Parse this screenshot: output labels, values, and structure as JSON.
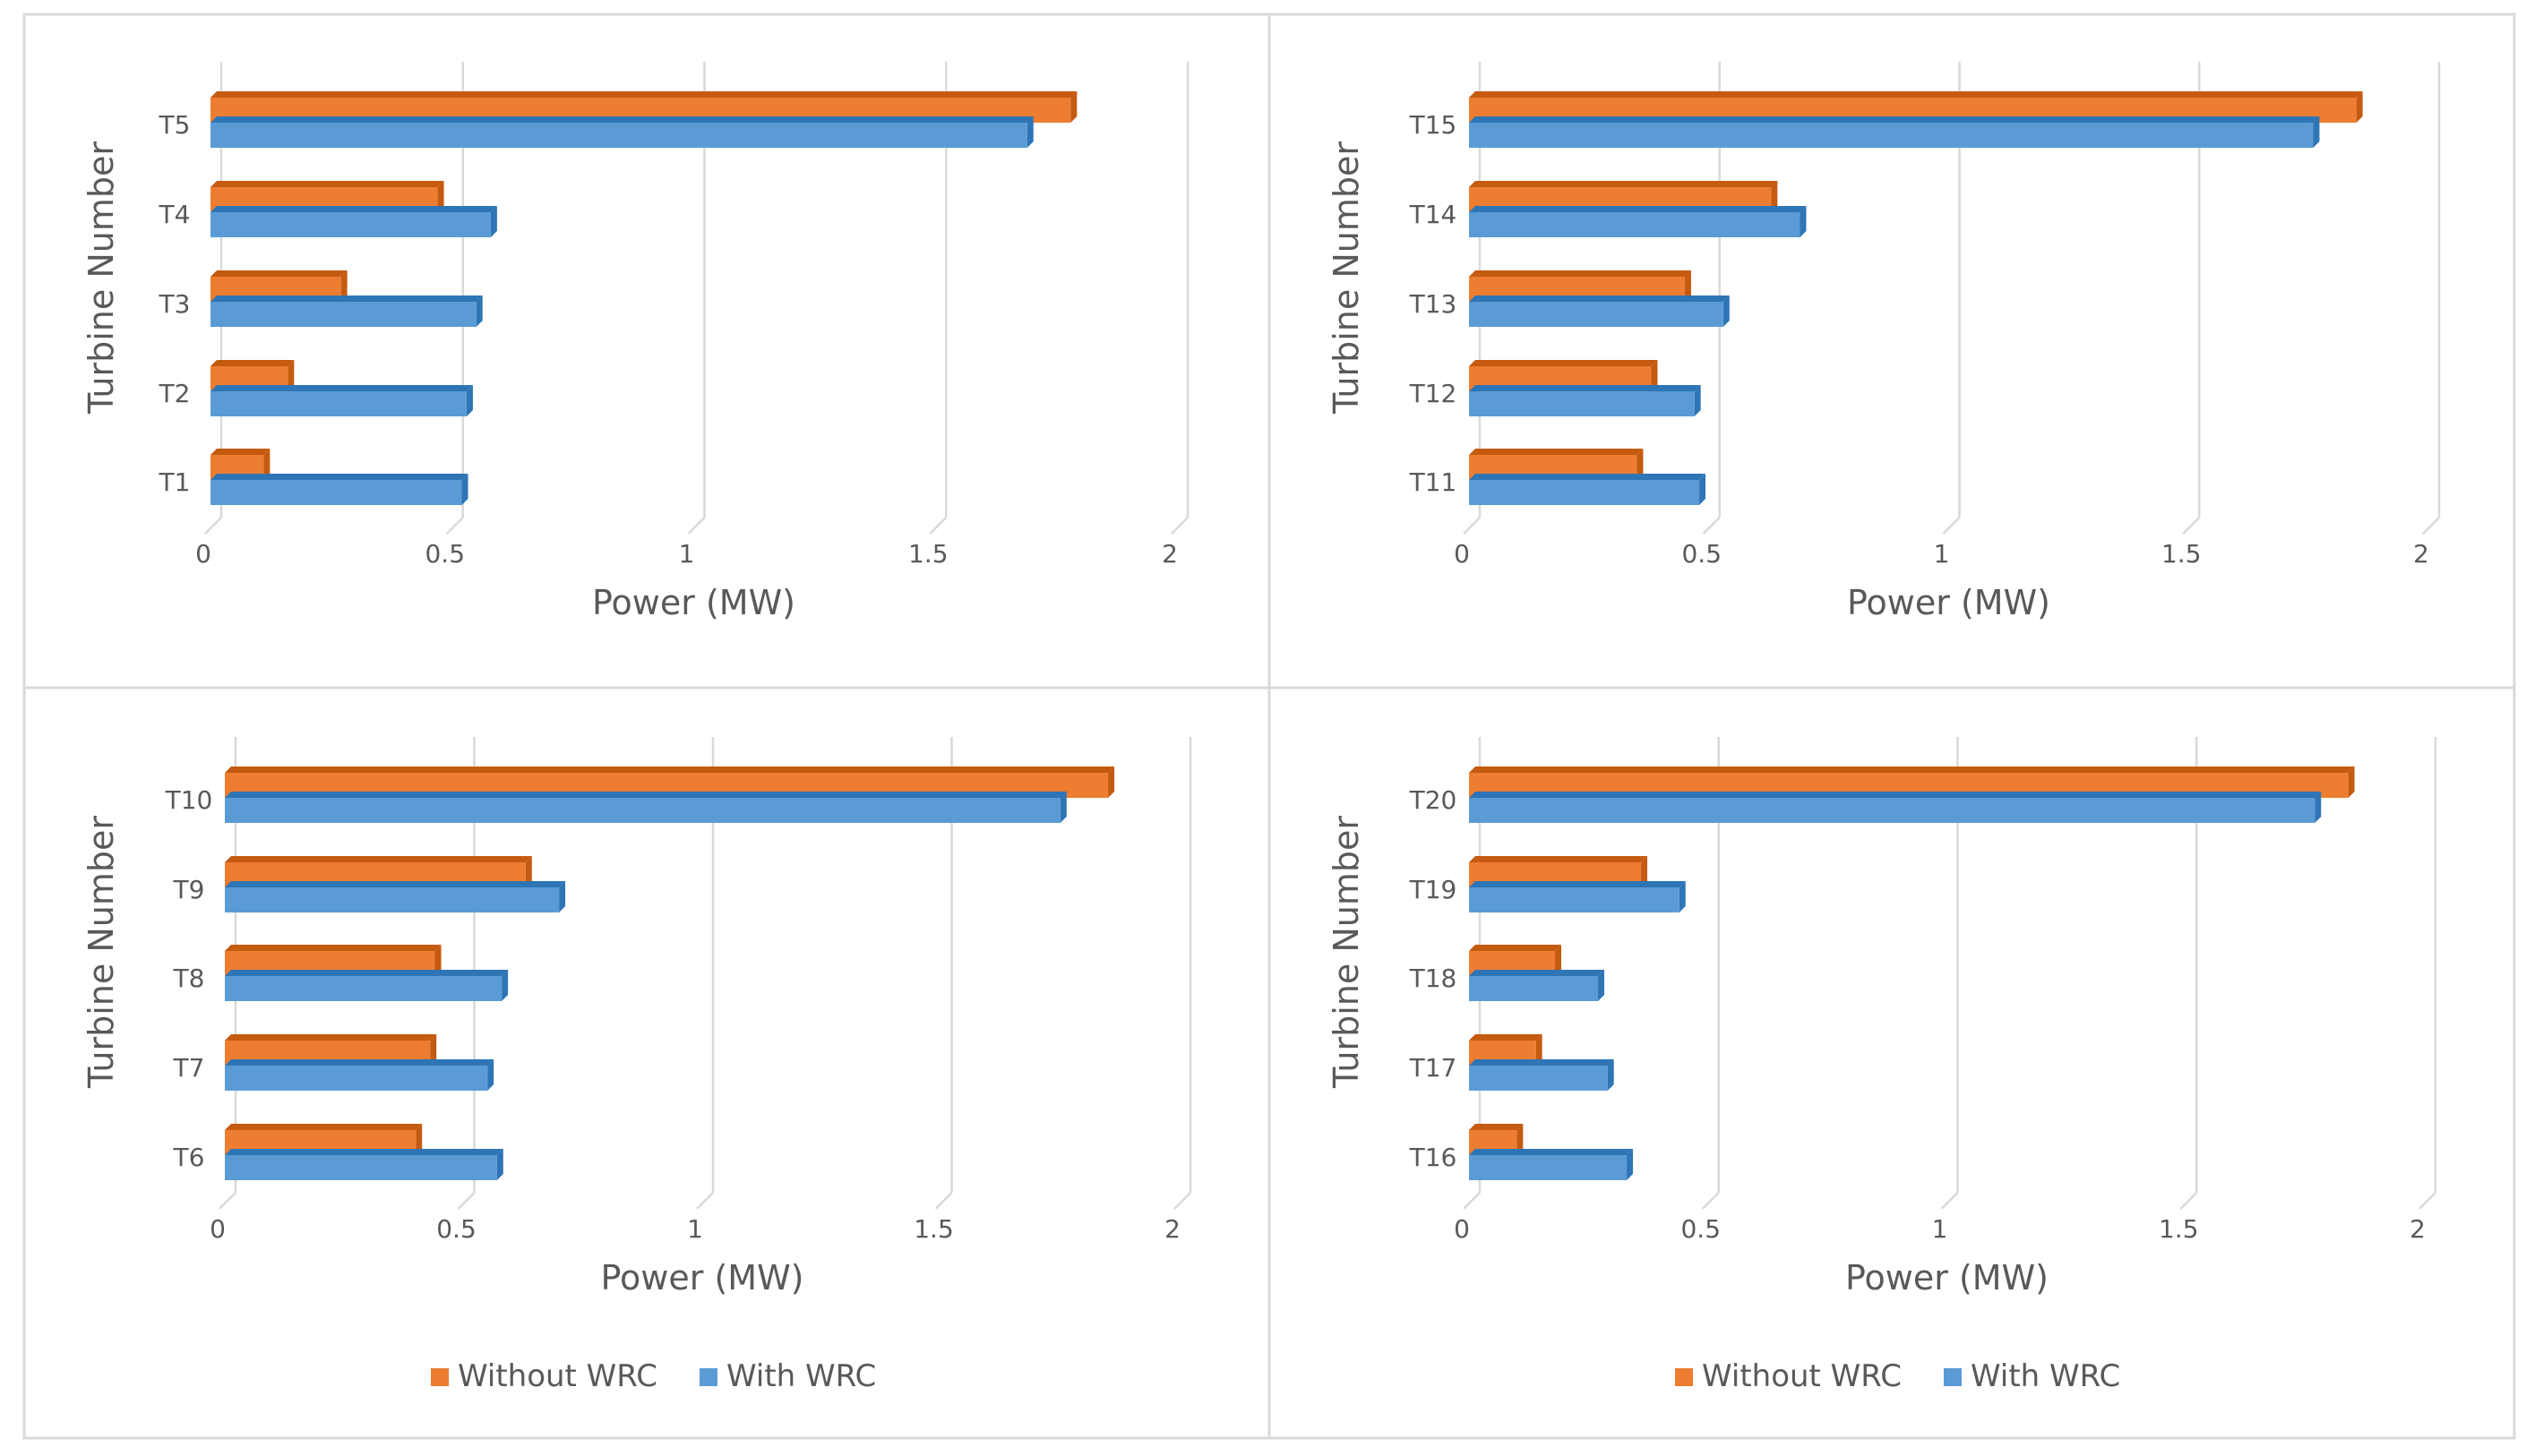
{
  "colors": {
    "without_wrc": "#ED7D31",
    "without_wrc_side": "#C55A11",
    "with_wrc": "#5B9BD5",
    "with_wrc_side": "#2E75B6",
    "grid": "#D9D9D9",
    "axis_text": "#595959",
    "panel_border": "#D9D9D9"
  },
  "legend": {
    "without_label": "Without WRC",
    "with_label": "With WRC"
  },
  "chart_data": [
    {
      "type": "bar",
      "orientation": "horizontal",
      "title": "",
      "xlabel": "Power (MW)",
      "ylabel": "Turbine Number",
      "xlim": [
        0,
        2
      ],
      "xticks": [
        "0",
        "0.5",
        "1",
        "1.5",
        "2"
      ],
      "categories": [
        "T1",
        "T2",
        "T3",
        "T4",
        "T5"
      ],
      "series": [
        {
          "name": "Without WRC",
          "values": [
            0.11,
            0.16,
            0.27,
            0.47,
            1.78
          ]
        },
        {
          "name": "With WRC",
          "values": [
            0.52,
            0.53,
            0.55,
            0.58,
            1.69
          ]
        }
      ],
      "legend": false
    },
    {
      "type": "bar",
      "orientation": "horizontal",
      "title": "",
      "xlabel": "Power (MW)",
      "ylabel": "Turbine Number",
      "xlim": [
        0,
        2
      ],
      "xticks": [
        "0",
        "0.5",
        "1",
        "1.5",
        "2"
      ],
      "categories": [
        "T11",
        "T12",
        "T13",
        "T14",
        "T15"
      ],
      "series": [
        {
          "name": "Without WRC",
          "values": [
            0.35,
            0.38,
            0.45,
            0.63,
            1.85
          ]
        },
        {
          "name": "With WRC",
          "values": [
            0.48,
            0.47,
            0.53,
            0.69,
            1.76
          ]
        }
      ],
      "legend": false
    },
    {
      "type": "bar",
      "orientation": "horizontal",
      "title": "",
      "xlabel": "Power (MW)",
      "ylabel": "Turbine Number",
      "xlim": [
        0,
        2
      ],
      "xticks": [
        "0",
        "0.5",
        "1",
        "1.5",
        "2"
      ],
      "categories": [
        "T6",
        "T7",
        "T8",
        "T9",
        "T10"
      ],
      "series": [
        {
          "name": "Without WRC",
          "values": [
            0.4,
            0.43,
            0.44,
            0.63,
            1.85
          ]
        },
        {
          "name": "With WRC",
          "values": [
            0.57,
            0.55,
            0.58,
            0.7,
            1.75
          ]
        }
      ],
      "legend": true
    },
    {
      "type": "bar",
      "orientation": "horizontal",
      "title": "",
      "xlabel": "Power (MW)",
      "ylabel": "Turbine Number",
      "xlim": [
        0,
        2
      ],
      "xticks": [
        "0",
        "0.5",
        "1",
        "1.5",
        "2"
      ],
      "categories": [
        "T16",
        "T17",
        "T18",
        "T19",
        "T20"
      ],
      "series": [
        {
          "name": "Without WRC",
          "values": [
            0.1,
            0.14,
            0.18,
            0.36,
            1.84
          ]
        },
        {
          "name": "With WRC",
          "values": [
            0.33,
            0.29,
            0.27,
            0.44,
            1.77
          ]
        }
      ],
      "legend": true
    }
  ]
}
